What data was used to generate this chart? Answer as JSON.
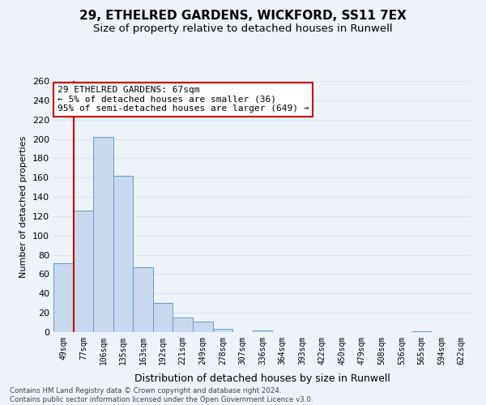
{
  "title1": "29, ETHELRED GARDENS, WICKFORD, SS11 7EX",
  "title2": "Size of property relative to detached houses in Runwell",
  "xlabel": "Distribution of detached houses by size in Runwell",
  "ylabel": "Number of detached properties",
  "footer1": "Contains HM Land Registry data © Crown copyright and database right 2024.",
  "footer2": "Contains public sector information licensed under the Open Government Licence v3.0.",
  "categories": [
    "49sqm",
    "77sqm",
    "106sqm",
    "135sqm",
    "163sqm",
    "192sqm",
    "221sqm",
    "249sqm",
    "278sqm",
    "307sqm",
    "336sqm",
    "364sqm",
    "393sqm",
    "422sqm",
    "450sqm",
    "479sqm",
    "508sqm",
    "536sqm",
    "565sqm",
    "594sqm",
    "622sqm"
  ],
  "values": [
    71,
    126,
    202,
    162,
    67,
    30,
    15,
    11,
    3,
    0,
    2,
    0,
    0,
    0,
    0,
    0,
    0,
    0,
    1,
    0,
    0
  ],
  "bar_color": "#c8d9ee",
  "bar_edge_color": "#6699cc",
  "red_line_color": "#cc0000",
  "red_line_x": -0.5,
  "annotation_title": "29 ETHELRED GARDENS: 67sqm",
  "annotation_line1": "← 5% of detached houses are smaller (36)",
  "annotation_line2": "95% of semi-detached houses are larger (649) →",
  "annotation_box_facecolor": "#ffffff",
  "annotation_box_edgecolor": "#cc0000",
  "ylim": [
    0,
    260
  ],
  "yticks": [
    0,
    20,
    40,
    60,
    80,
    100,
    120,
    140,
    160,
    180,
    200,
    220,
    240,
    260
  ],
  "bg_color": "#eef2f9",
  "grid_color": "#d8e2f0"
}
